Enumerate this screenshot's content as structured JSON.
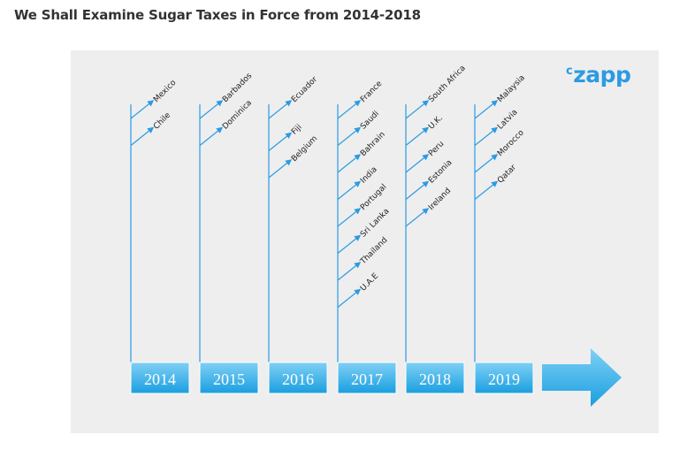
{
  "heading": "We Shall Examine Sugar Taxes in Force from 2014-2018",
  "logo": {
    "prefix": "c",
    "name": "zapp"
  },
  "colors": {
    "accent": "#2b9be3",
    "box_top": "#7fd0f5",
    "box_bottom": "#1a9fe0",
    "panel": "#eeeeee"
  },
  "years": [
    {
      "year": "2014",
      "countries": [
        "Mexico",
        "Chile"
      ]
    },
    {
      "year": "2015",
      "countries": [
        "Barbados",
        "Dominica"
      ]
    },
    {
      "year": "2016",
      "countries": [
        "Ecuador",
        "Fiji",
        "Belgium"
      ]
    },
    {
      "year": "2017",
      "countries": [
        "France",
        "Saudi",
        "Bahrain",
        "India",
        "Portugal",
        "Sri Lanka",
        "Thailand",
        "U.A.E"
      ]
    },
    {
      "year": "2018",
      "countries": [
        "South Africa",
        "U.K.",
        "Peru",
        "Estonia",
        "Ireland"
      ]
    },
    {
      "year": "2019",
      "countries": [
        "Malaysia",
        "Latvia",
        "Morocco",
        "Qatar"
      ]
    }
  ]
}
